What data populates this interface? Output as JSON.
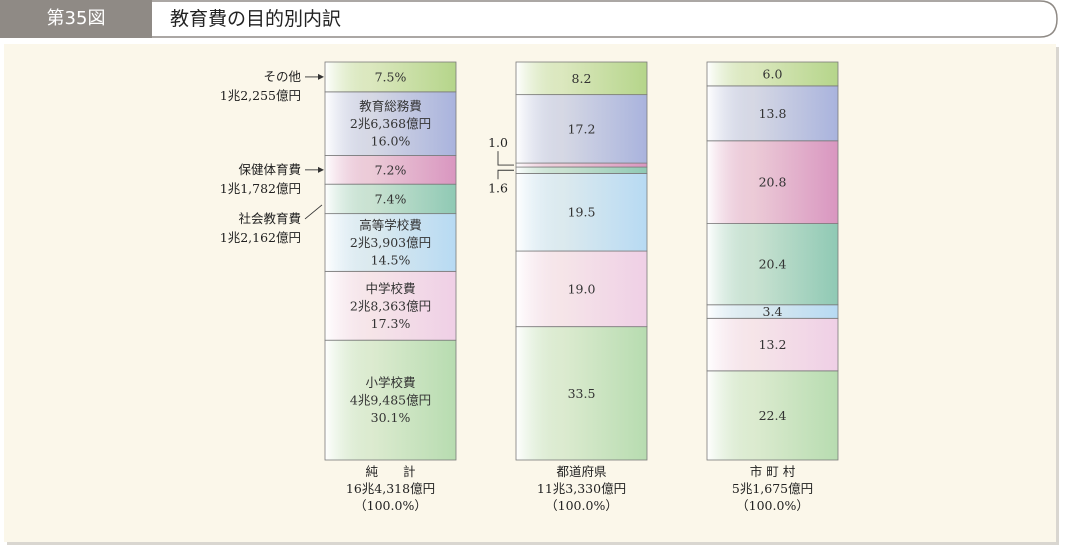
{
  "figure": {
    "number": "第35図",
    "title": "教育費の目的別内訳"
  },
  "chart_data": {
    "type": "bar",
    "stacked": true,
    "colors": {
      "sonota": "#b5d58a",
      "sohmu": "#a9b3dd",
      "hoken": "#d996c0",
      "shakai": "#8fc9b4",
      "koko": "#b7daf3",
      "chugaku": "#efcfe6",
      "shogaku": "#b7dcb0"
    },
    "series": [
      {
        "name": "純　　計",
        "total": "16兆4,318億円",
        "total_pct": "（100.0%）",
        "segments": [
          {
            "key": "shogaku",
            "value": 30.1,
            "lines": [
              "小学校費",
              "4兆9,485億円",
              "30.1%"
            ]
          },
          {
            "key": "chugaku",
            "value": 17.3,
            "lines": [
              "中学校費",
              "2兆8,363億円",
              "17.3%"
            ]
          },
          {
            "key": "koko",
            "value": 14.5,
            "lines": [
              "高等学校費",
              "2兆3,903億円",
              "14.5%"
            ]
          },
          {
            "key": "shakai",
            "value": 7.4,
            "lines": [
              "7.4%"
            ]
          },
          {
            "key": "hoken",
            "value": 7.2,
            "lines": [
              "7.2%"
            ]
          },
          {
            "key": "sohmu",
            "value": 16.0,
            "lines": [
              "教育総務費",
              "2兆6,368億円",
              "16.0%"
            ]
          },
          {
            "key": "sonota",
            "value": 7.5,
            "lines": [
              "7.5%"
            ]
          }
        ]
      },
      {
        "name": "都道府県",
        "total": "11兆3,330億円",
        "total_pct": "（100.0%）",
        "segments": [
          {
            "key": "shogaku",
            "value": 33.5,
            "lines": [
              "33.5"
            ]
          },
          {
            "key": "chugaku",
            "value": 19.0,
            "lines": [
              "19.0"
            ]
          },
          {
            "key": "koko",
            "value": 19.5,
            "lines": [
              "19.5"
            ]
          },
          {
            "key": "shakai",
            "value": 1.6,
            "lines": []
          },
          {
            "key": "hoken",
            "value": 1.0,
            "lines": []
          },
          {
            "key": "sohmu",
            "value": 17.2,
            "lines": [
              "17.2"
            ]
          },
          {
            "key": "sonota",
            "value": 8.2,
            "lines": [
              "8.2"
            ]
          }
        ]
      },
      {
        "name": "市 町 村",
        "total": "5兆1,675億円",
        "total_pct": "（100.0%）",
        "segments": [
          {
            "key": "shogaku",
            "value": 22.4,
            "lines": [
              "22.4"
            ]
          },
          {
            "key": "chugaku",
            "value": 13.2,
            "lines": [
              "13.2"
            ]
          },
          {
            "key": "koko",
            "value": 3.4,
            "lines": [
              "3.4"
            ]
          },
          {
            "key": "shakai",
            "value": 20.4,
            "lines": [
              "20.4"
            ]
          },
          {
            "key": "hoken",
            "value": 20.8,
            "lines": [
              "20.8"
            ]
          },
          {
            "key": "sohmu",
            "value": 13.8,
            "lines": [
              "13.8"
            ]
          },
          {
            "key": "sonota",
            "value": 6.0,
            "lines": [
              "6.0"
            ]
          }
        ]
      }
    ],
    "callouts": {
      "sonota": [
        "その他",
        "1兆2,255億円"
      ],
      "hoken": [
        "保健体育費",
        "1兆1,782億円"
      ],
      "shakai": [
        "社会教育費",
        "1兆2,162億円"
      ],
      "pref_small_top": "1.0",
      "pref_small_bottom": "1.6"
    }
  }
}
